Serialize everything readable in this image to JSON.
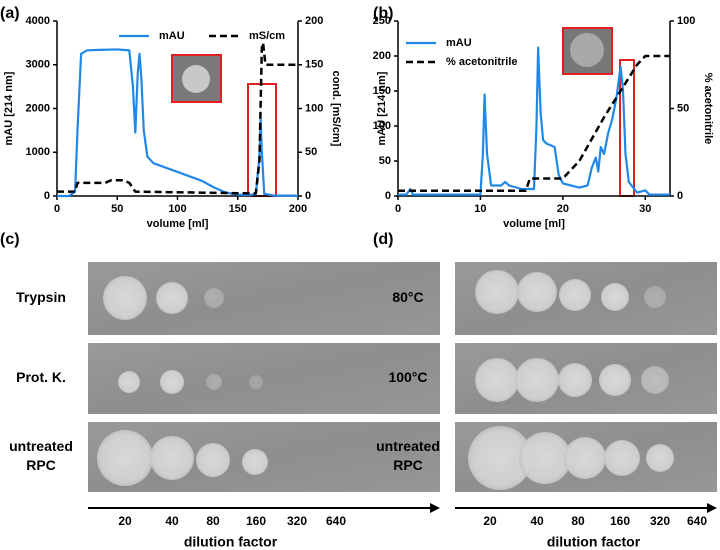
{
  "chart_data": [
    {
      "type": "line",
      "panel_label": "(a)",
      "xlabel": "volume [ml]",
      "ylabel": "mAU [214 nm]",
      "y2label": "cond. [mS/cm]",
      "xlim": [
        0,
        200
      ],
      "xticks": [
        0,
        50,
        100,
        150,
        200
      ],
      "ylim": [
        0,
        4000
      ],
      "yticks": [
        0,
        1000,
        2000,
        3000,
        4000
      ],
      "y2lim": [
        0,
        200
      ],
      "y2ticks": [
        0,
        50,
        100,
        150,
        200
      ],
      "legend": "upper right",
      "series": [
        {
          "name": "mAU",
          "color": "#2188e8",
          "x": [
            0,
            10,
            15,
            17,
            20,
            25,
            35,
            50,
            60,
            63,
            65,
            67,
            68.5,
            70,
            72,
            75,
            80,
            90,
            100,
            120,
            130,
            140,
            150,
            160,
            165,
            168,
            169,
            170,
            172,
            180,
            200
          ],
          "values": [
            0,
            0,
            100,
            1500,
            3250,
            3330,
            3340,
            3350,
            3330,
            2500,
            1450,
            2800,
            3250,
            2700,
            1500,
            900,
            750,
            650,
            550,
            350,
            200,
            80,
            30,
            20,
            50,
            900,
            1750,
            1000,
            50,
            10,
            10
          ]
        },
        {
          "name": "mS/cm",
          "color": "#000000",
          "dash": true,
          "axis": "y2",
          "x": [
            0,
            15,
            17,
            40,
            45,
            55,
            60,
            65,
            160,
            165,
            168,
            170,
            171,
            173,
            200
          ],
          "values": [
            5,
            5,
            15,
            15,
            18,
            18,
            15,
            5,
            3,
            3,
            40,
            170,
            175,
            150,
            150
          ]
        }
      ]
    },
    {
      "type": "line",
      "panel_label": "(b)",
      "xlabel": "volume [ml]",
      "ylabel": "mAU [214 nm]",
      "y2label": "% acetonitrile",
      "xlim": [
        0,
        33
      ],
      "xticks": [
        0,
        10,
        20,
        30
      ],
      "ylim": [
        0,
        250
      ],
      "yticks": [
        0,
        50,
        100,
        150,
        200,
        250
      ],
      "y2lim": [
        0,
        100
      ],
      "y2ticks": [
        0,
        50,
        100
      ],
      "legend": "upper left",
      "series": [
        {
          "name": "mAU",
          "color": "#2188e8",
          "x": [
            0,
            1,
            1.5,
            1.8,
            10,
            10.3,
            10.5,
            10.8,
            11.3,
            12.5,
            13,
            13.5,
            15,
            16.5,
            16.8,
            17,
            17.3,
            17.6,
            18,
            19,
            19.5,
            20,
            21,
            22,
            23,
            23.5,
            24,
            24.3,
            24.6,
            25,
            25.5,
            26,
            26.5,
            27,
            27.3,
            27.6,
            28,
            29,
            30,
            30.5,
            33
          ],
          "values": [
            2,
            2,
            10,
            2,
            2,
            60,
            145,
            60,
            15,
            15,
            20,
            15,
            10,
            10,
            100,
            212,
            120,
            80,
            75,
            70,
            30,
            18,
            15,
            12,
            15,
            40,
            55,
            35,
            70,
            60,
            90,
            110,
            140,
            185,
            150,
            60,
            20,
            5,
            8,
            2,
            2
          ]
        },
        {
          "name": "% acetonitrile",
          "color": "#000000",
          "dash": true,
          "axis": "y2",
          "x": [
            0,
            15.5,
            16,
            20,
            22,
            25,
            27,
            29,
            30,
            33
          ],
          "values": [
            3,
            3,
            10,
            10,
            20,
            45,
            60,
            75,
            80,
            80
          ]
        }
      ]
    }
  ],
  "panels": [
    {
      "label": "(c)",
      "rows": [
        {
          "label": [
            "Trypsin"
          ]
        },
        {
          "label": [
            "Prot. K."
          ]
        },
        {
          "label": [
            "untreated",
            "RPC"
          ]
        }
      ],
      "dilutions": [
        20,
        40,
        80,
        160,
        320,
        640
      ],
      "axis_label": "dilution factor"
    },
    {
      "label": "(d)",
      "rows": [
        {
          "label": [
            "80°C"
          ]
        },
        {
          "label": [
            "100°C"
          ]
        },
        {
          "label": [
            "untreated",
            "RPC"
          ]
        }
      ],
      "dilutions": [
        20,
        40,
        80,
        160,
        320,
        640
      ],
      "axis_label": "dilution factor"
    }
  ]
}
